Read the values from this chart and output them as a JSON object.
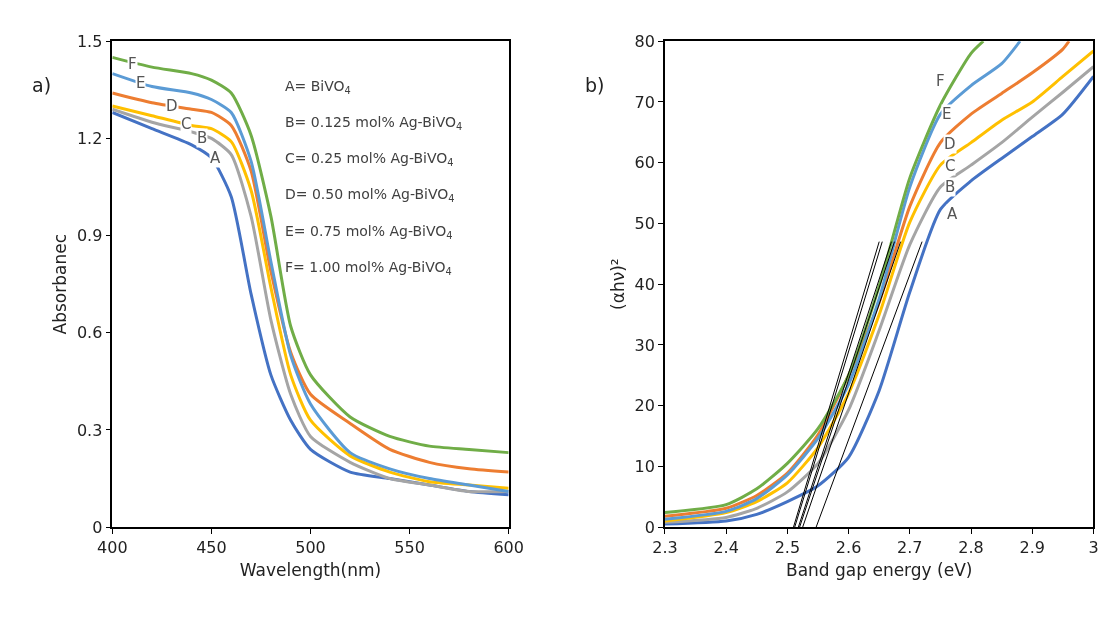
{
  "chart_data": [
    {
      "type": "line",
      "xlabel": "Wavelength(nm)",
      "ylabel": "Absorbanec",
      "xlim": [
        400,
        600
      ],
      "ylim": [
        0,
        1.5
      ],
      "xticks": [
        400,
        450,
        500,
        550,
        600
      ],
      "yticks": [
        0,
        0.3,
        0.6,
        0.9,
        1.2,
        1.5
      ],
      "marker": "none",
      "line_style": "solid",
      "x": [
        400,
        420,
        440,
        450,
        460,
        470,
        480,
        490,
        500,
        520,
        540,
        560,
        580,
        600
      ],
      "series": [
        {
          "color": "#4472c4",
          "values": [
            1.28,
            1.23,
            1.18,
            1.14,
            1.02,
            0.72,
            0.47,
            0.33,
            0.24,
            0.17,
            0.15,
            0.13,
            0.11,
            0.1
          ]
        },
        {
          "color": "#a5a5a5",
          "values": [
            1.29,
            1.25,
            1.22,
            1.2,
            1.15,
            0.96,
            0.64,
            0.41,
            0.28,
            0.2,
            0.15,
            0.13,
            0.11,
            0.11
          ]
        },
        {
          "color": "#ffc000",
          "values": [
            1.3,
            1.27,
            1.24,
            1.23,
            1.19,
            1.04,
            0.74,
            0.47,
            0.33,
            0.22,
            0.17,
            0.14,
            0.13,
            0.12
          ]
        },
        {
          "color": "#ed7d31",
          "values": [
            1.34,
            1.31,
            1.29,
            1.28,
            1.24,
            1.1,
            0.79,
            0.54,
            0.41,
            0.32,
            0.24,
            0.2,
            0.18,
            0.17
          ]
        },
        {
          "color": "#5b9bd5",
          "values": [
            1.4,
            1.36,
            1.34,
            1.32,
            1.28,
            1.13,
            0.82,
            0.53,
            0.38,
            0.23,
            0.18,
            0.15,
            0.13,
            0.11
          ]
        },
        {
          "color": "#70ad47",
          "values": [
            1.45,
            1.42,
            1.4,
            1.38,
            1.34,
            1.21,
            0.96,
            0.62,
            0.47,
            0.34,
            0.28,
            0.25,
            0.24,
            0.23
          ]
        }
      ],
      "annotations": [
        "a)",
        "A= BiVO$_{4}$",
        "B= 0.125 mol% Ag-BiVO$_{4}$",
        "C= 0.25 mol% Ag-BiVO$_{4}$",
        "D= 0.50 mol% Ag-BiVO$_{4}$",
        "E= 0.75 mol% Ag-BiVO$_{4}$",
        "F= 1.00 mol% Ag-BiVO$_{4}$",
        {
          "text": "A",
          "x": 452,
          "y": 1.14
        },
        {
          "text": "B",
          "x": 445,
          "y": 1.2
        },
        {
          "text": "C",
          "x": 437,
          "y": 1.245
        },
        {
          "text": "D",
          "x": 430,
          "y": 1.3
        },
        {
          "text": "E",
          "x": 414,
          "y": 1.37
        },
        {
          "text": "F",
          "x": 410,
          "y": 1.43
        }
      ]
    },
    {
      "type": "line",
      "xlabel": "Band gap energy (eV)",
      "ylabel": "(αhν)²",
      "xlim": [
        2.3,
        3
      ],
      "ylim": [
        0,
        80
      ],
      "xticks": [
        2.3,
        2.4,
        2.5,
        2.6,
        2.7,
        2.8,
        2.9,
        3
      ],
      "yticks": [
        0,
        10,
        20,
        30,
        40,
        50,
        60,
        70,
        80
      ],
      "marker": "none",
      "line_style": "solid",
      "series": [
        {
          "color": "#4472c4",
          "x": [
            2.3,
            2.4,
            2.45,
            2.5,
            2.55,
            2.6,
            2.65,
            2.7,
            2.75,
            2.8,
            2.85,
            2.9,
            2.95,
            3.0
          ],
          "values": [
            0.5,
            1.0,
            2.1,
            4.2,
            6.8,
            11.5,
            22.5,
            38.7,
            52.3,
            57,
            60.7,
            64.3,
            68,
            74.2
          ]
        },
        {
          "color": "#a5a5a5",
          "x": [
            2.3,
            2.4,
            2.45,
            2.5,
            2.55,
            2.6,
            2.65,
            2.7,
            2.75,
            2.8,
            2.85,
            2.9,
            2.95,
            3.0
          ],
          "values": [
            0.8,
            1.6,
            3.1,
            5.8,
            10.5,
            19.3,
            32.4,
            46.5,
            56,
            59.6,
            63.3,
            67.5,
            71.6,
            75.8
          ]
        },
        {
          "color": "#ffc000",
          "x": [
            2.3,
            2.4,
            2.45,
            2.5,
            2.55,
            2.6,
            2.65,
            2.7,
            2.75,
            2.8,
            2.85,
            2.9,
            2.95,
            3.0
          ],
          "values": [
            1.0,
            2.4,
            4.2,
            7.3,
            13.1,
            22,
            35,
            50.2,
            59.6,
            63.3,
            67,
            70,
            74.2,
            78.4
          ]
        },
        {
          "color": "#ed7d31",
          "x": [
            2.3,
            2.4,
            2.45,
            2.5,
            2.55,
            2.6,
            2.65,
            2.7,
            2.75,
            2.8,
            2.85,
            2.9,
            2.95,
            2.96
          ],
          "values": [
            1.8,
            3.1,
            5.2,
            8.9,
            15.2,
            25,
            37,
            52.8,
            63.3,
            68,
            71.4,
            74.8,
            78.7,
            80
          ]
        },
        {
          "color": "#5b9bd5",
          "x": [
            2.3,
            2.4,
            2.45,
            2.5,
            2.55,
            2.6,
            2.65,
            2.7,
            2.75,
            2.8,
            2.85,
            2.88
          ],
          "values": [
            1.3,
            2.6,
            4.7,
            8.6,
            14.6,
            23.5,
            37.6,
            56,
            68,
            72.7,
            76.3,
            80
          ]
        },
        {
          "color": "#70ad47",
          "x": [
            2.3,
            2.4,
            2.45,
            2.5,
            2.55,
            2.6,
            2.65,
            2.7,
            2.75,
            2.8,
            2.82
          ],
          "values": [
            2.4,
            3.7,
            6.3,
            10.5,
            16.2,
            25,
            39.7,
            57.5,
            69.5,
            78,
            80
          ]
        },
        {
          "color": "#000000",
          "x": [
            2.547,
            2.72
          ],
          "values": [
            0,
            47
          ]
        },
        {
          "color": "#000000",
          "x": [
            2.525,
            2.685
          ],
          "values": [
            0,
            47
          ]
        },
        {
          "color": "#000000",
          "x": [
            2.52,
            2.675
          ],
          "values": [
            0,
            47
          ]
        },
        {
          "color": "#000000",
          "x": [
            2.518,
            2.67
          ],
          "values": [
            0,
            47
          ]
        },
        {
          "color": "#000000",
          "x": [
            2.512,
            2.655
          ],
          "values": [
            0,
            47
          ]
        },
        {
          "color": "#000000",
          "x": [
            2.51,
            2.65
          ],
          "values": [
            0,
            47
          ]
        }
      ],
      "annotations": [
        "b)",
        {
          "text": "A",
          "x": 2.77,
          "y": 51.5
        },
        {
          "text": "B",
          "x": 2.765,
          "y": 56
        },
        {
          "text": "C",
          "x": 2.765,
          "y": 59.5
        },
        {
          "text": "D",
          "x": 2.765,
          "y": 63
        },
        {
          "text": "E",
          "x": 2.76,
          "y": 68
        },
        {
          "text": "F",
          "x": 2.75,
          "y": 73.5
        }
      ]
    }
  ]
}
